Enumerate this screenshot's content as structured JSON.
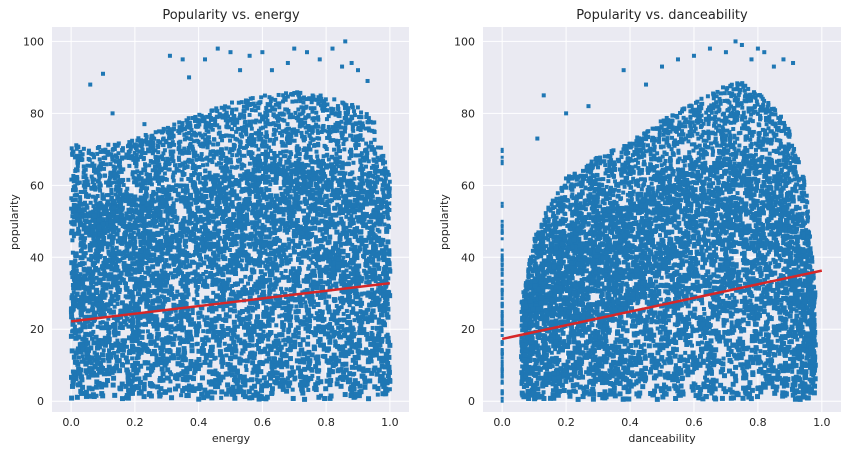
{
  "chart_data": [
    {
      "type": "scatter",
      "title": "Popularity vs. energy",
      "xlabel": "energy",
      "ylabel": "popularity",
      "xlim": [
        -0.06,
        1.06
      ],
      "ylim": [
        -3,
        104
      ],
      "xticks": [
        0.0,
        0.2,
        0.4,
        0.6,
        0.8,
        1.0
      ],
      "xtick_labels": [
        "0.0",
        "0.2",
        "0.4",
        "0.6",
        "0.8",
        "1.0"
      ],
      "yticks": [
        0,
        20,
        40,
        60,
        80,
        100
      ],
      "ytick_labels": [
        "0",
        "20",
        "40",
        "60",
        "80",
        "100"
      ],
      "grid": true,
      "background": "#eaeaf2",
      "point_color": "#1f77b4",
      "regression_color": "#d62728",
      "regression_line": {
        "x": [
          0.0,
          1.0
        ],
        "y": [
          22.2,
          32.8
        ]
      },
      "envelope": {
        "x": [
          0.0,
          0.05,
          0.1,
          0.2,
          0.3,
          0.4,
          0.5,
          0.6,
          0.7,
          0.8,
          0.9,
          0.95,
          1.0
        ],
        "upper": [
          72,
          70,
          71,
          73,
          76,
          80,
          83,
          85,
          86,
          85,
          82,
          78,
          62
        ]
      },
      "sparse_points": {
        "x": [
          0.06,
          0.1,
          0.13,
          0.23,
          0.31,
          0.35,
          0.37,
          0.42,
          0.46,
          0.5,
          0.53,
          0.56,
          0.6,
          0.63,
          0.68,
          0.7,
          0.74,
          0.78,
          0.82,
          0.85,
          0.86,
          0.88,
          0.9,
          0.93
        ],
        "y": [
          88,
          91,
          80,
          77,
          96,
          95,
          90,
          95,
          98,
          97,
          92,
          96,
          97,
          92,
          94,
          98,
          97,
          95,
          98,
          93,
          100,
          94,
          92,
          89
        ]
      }
    },
    {
      "type": "scatter",
      "title": "Popularity vs. danceability",
      "xlabel": "danceability",
      "ylabel": "popularity",
      "xlim": [
        -0.06,
        1.06
      ],
      "ylim": [
        -3,
        104
      ],
      "xticks": [
        0.0,
        0.2,
        0.4,
        0.6,
        0.8,
        1.0
      ],
      "xtick_labels": [
        "0.0",
        "0.2",
        "0.4",
        "0.6",
        "0.8",
        "1.0"
      ],
      "yticks": [
        0,
        20,
        40,
        60,
        80,
        100
      ],
      "ytick_labels": [
        "0",
        "20",
        "40",
        "60",
        "80",
        "100"
      ],
      "grid": true,
      "background": "#eaeaf2",
      "point_color": "#1f77b4",
      "regression_color": "#d62728",
      "regression_line": {
        "x": [
          0.0,
          1.0
        ],
        "y": [
          17.3,
          36.3
        ]
      },
      "envelope": {
        "x": [
          0.06,
          0.1,
          0.15,
          0.2,
          0.3,
          0.4,
          0.5,
          0.6,
          0.7,
          0.75,
          0.8,
          0.85,
          0.9,
          0.95,
          0.98
        ],
        "upper": [
          28,
          45,
          55,
          62,
          68,
          72,
          78,
          83,
          88,
          89,
          86,
          82,
          76,
          60,
          30
        ]
      },
      "zero_column": {
        "x": 0.0,
        "y": [
          0,
          12,
          20,
          27,
          35,
          42,
          49,
          55,
          66,
          70
        ]
      },
      "sparse_points": {
        "x": [
          0.11,
          0.13,
          0.2,
          0.27,
          0.38,
          0.45,
          0.5,
          0.55,
          0.6,
          0.65,
          0.7,
          0.73,
          0.75,
          0.78,
          0.8,
          0.82,
          0.85,
          0.88,
          0.91
        ],
        "y": [
          73,
          85,
          80,
          82,
          92,
          88,
          93,
          95,
          96,
          98,
          97,
          100,
          99,
          95,
          98,
          97,
          93,
          95,
          94
        ]
      }
    }
  ]
}
